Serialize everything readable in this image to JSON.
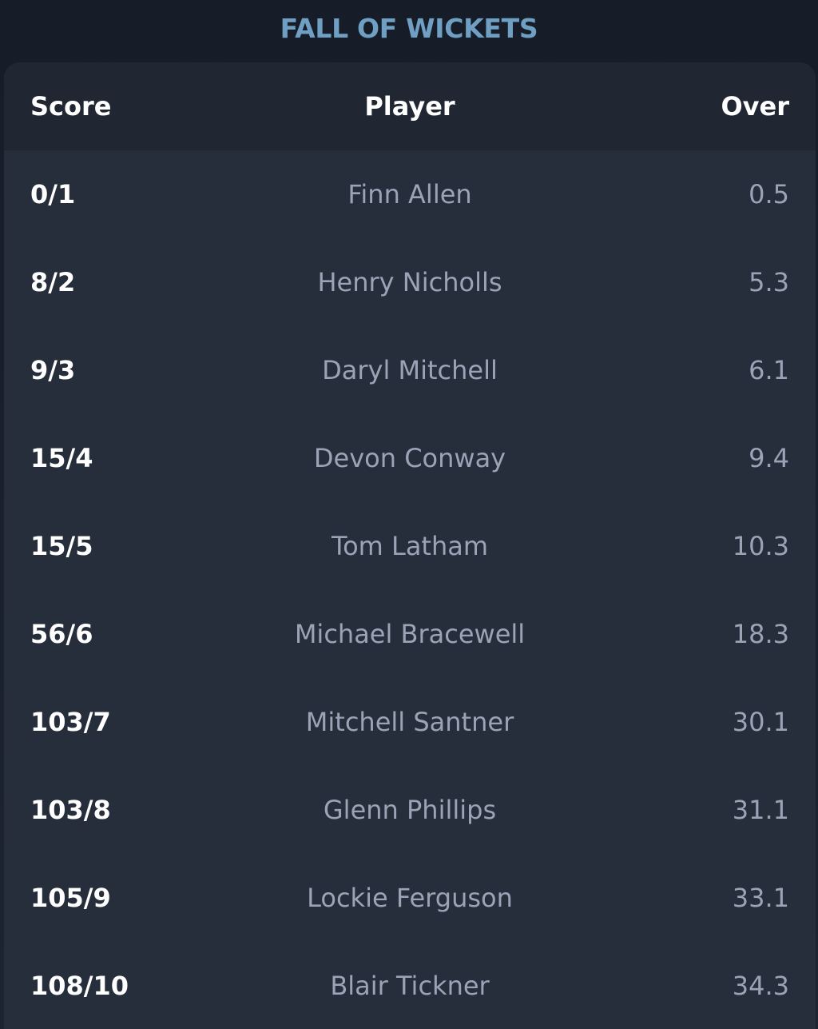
{
  "section": {
    "title": "FALL OF WICKETS"
  },
  "table": {
    "headers": {
      "score": "Score",
      "player": "Player",
      "over": "Over"
    },
    "rows": [
      {
        "score": "0/1",
        "player": "Finn Allen",
        "over": "0.5"
      },
      {
        "score": "8/2",
        "player": "Henry Nicholls",
        "over": "5.3"
      },
      {
        "score": "9/3",
        "player": "Daryl Mitchell",
        "over": "6.1"
      },
      {
        "score": "15/4",
        "player": "Devon Conway",
        "over": "9.4"
      },
      {
        "score": "15/5",
        "player": "Tom Latham",
        "over": "10.3"
      },
      {
        "score": "56/6",
        "player": "Michael Bracewell",
        "over": "18.3"
      },
      {
        "score": "103/7",
        "player": "Mitchell Santner",
        "over": "30.1"
      },
      {
        "score": "103/8",
        "player": "Glenn Phillips",
        "over": "31.1"
      },
      {
        "score": "105/9",
        "player": "Lockie Ferguson",
        "over": "33.1"
      },
      {
        "score": "108/10",
        "player": "Blair Tickner",
        "over": "34.3"
      }
    ]
  },
  "colors": {
    "title": "#6f9fc2",
    "card_bg": "#272e3b",
    "header_bg": "#202733",
    "primary_text": "#ffffff",
    "secondary_text": "#9aa4b6"
  }
}
